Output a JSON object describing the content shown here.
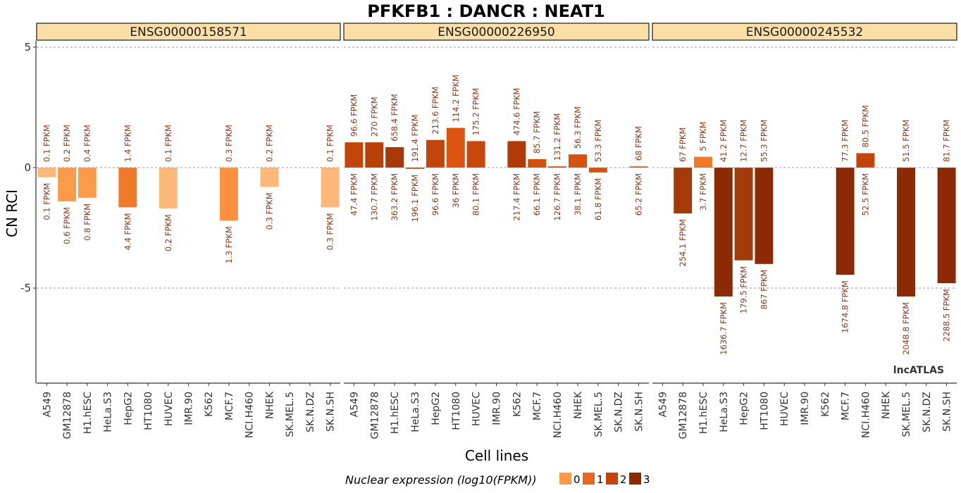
{
  "chart_data": {
    "type": "bar",
    "title": "PFKFB1 : DANCR : NEAT1",
    "xlabel": "Cell lines",
    "ylabel": "CN RCI",
    "ylim": [
      -9,
      6
    ],
    "yticks": [
      5,
      0,
      -5
    ],
    "grid": "horizontal dashed at y ticks",
    "categories": [
      "A549",
      "GM12878",
      "H1.hESC",
      "HeLa.S3",
      "HepG2",
      "HT1080",
      "HUVEC",
      "IMR.90",
      "K562",
      "MCF.7",
      "NCI.H460",
      "NHEK",
      "SK.MEL.5",
      "SK.N.DZ",
      "SK.N.SH"
    ],
    "legend": {
      "title": "Nuclear expression (log10(FPKM))",
      "position": "bottom",
      "items": [
        {
          "label": "0",
          "color": "#FC9A4A"
        },
        {
          "label": "1",
          "color": "#E8661F"
        },
        {
          "label": "2",
          "color": "#C2450B"
        },
        {
          "label": "3",
          "color": "#8B2A05"
        }
      ]
    },
    "watermark": "lncATLAS",
    "panels": [
      {
        "name": "ENSG00000158571",
        "bars": [
          {
            "category": "A549",
            "value": -0.4,
            "color": "#FDB87A",
            "top_label": "0.1 FPKM",
            "bottom_label": "0.1 FPKM"
          },
          {
            "category": "GM12878",
            "value": -1.4,
            "color": "#FC9A4A",
            "top_label": "0.2 FPKM",
            "bottom_label": "0.6 FPKM"
          },
          {
            "category": "H1.hESC",
            "value": -1.25,
            "color": "#FC9A4A",
            "top_label": "0.4 FPKM",
            "bottom_label": "0.8 FPKM"
          },
          {
            "category": "HepG2",
            "value": -1.65,
            "color": "#F07A2A",
            "top_label": "1.4 FPKM",
            "bottom_label": "4.4 FPKM"
          },
          {
            "category": "HUVEC",
            "value": -1.7,
            "color": "#FDB87A",
            "top_label": "0.1 FPKM",
            "bottom_label": "0.2 FPKM"
          },
          {
            "category": "MCF.7",
            "value": -2.2,
            "color": "#FC9040",
            "top_label": "0.3 FPKM",
            "bottom_label": "1.3 FPKM"
          },
          {
            "category": "NHEK",
            "value": -0.8,
            "color": "#FDB87A",
            "top_label": "0.2 FPKM",
            "bottom_label": "0.3 FPKM"
          },
          {
            "category": "SK.N.SH",
            "value": -1.65,
            "color": "#FDB87A",
            "top_label": "0.1 FPKM",
            "bottom_label": "0.3 FPKM"
          }
        ]
      },
      {
        "name": "ENSG00000226950",
        "bars": [
          {
            "category": "A549",
            "value": 1.05,
            "color": "#C2450B",
            "top_label": "96.6 FPKM",
            "bottom_label": "47.4 FPKM"
          },
          {
            "category": "GM12878",
            "value": 1.05,
            "color": "#B8400A",
            "top_label": "270 FPKM",
            "bottom_label": "130.7 FPKM"
          },
          {
            "category": "H1.hESC",
            "value": 0.85,
            "color": "#A83808",
            "top_label": "658.4 FPKM",
            "bottom_label": "363.2 FPKM"
          },
          {
            "category": "HeLa.S3",
            "value": -0.05,
            "color": "#B8400A",
            "top_label": "191.4 FPKM",
            "bottom_label": "196.1 FPKM"
          },
          {
            "category": "HepG2",
            "value": 1.15,
            "color": "#C2450B",
            "top_label": "213.6 FPKM",
            "bottom_label": "96.6 FPKM"
          },
          {
            "category": "HT1080",
            "value": 1.65,
            "color": "#DC540F",
            "top_label": "114.2 FPKM",
            "bottom_label": "36 FPKM"
          },
          {
            "category": "HUVEC",
            "value": 1.1,
            "color": "#C8480C",
            "top_label": "175.2 FPKM",
            "bottom_label": "80.1 FPKM"
          },
          {
            "category": "K562",
            "value": 1.1,
            "color": "#B03A08",
            "top_label": "474.6 FPKM",
            "bottom_label": "217.4 FPKM"
          },
          {
            "category": "MCF.7",
            "value": 0.35,
            "color": "#D0500E",
            "top_label": "85.7 FPKM",
            "bottom_label": "66.1 FPKM"
          },
          {
            "category": "NCI.H460",
            "value": 0.05,
            "color": "#C2450B",
            "top_label": "131.2 FPKM",
            "bottom_label": "126.7 FPKM"
          },
          {
            "category": "NHEK",
            "value": 0.55,
            "color": "#D65210",
            "top_label": "56.3 FPKM",
            "bottom_label": "38.1 FPKM"
          },
          {
            "category": "SK.MEL.5",
            "value": -0.2,
            "color": "#D65210",
            "top_label": "53.3 FPKM",
            "bottom_label": "61.8 FPKM"
          },
          {
            "category": "SK.N.SH",
            "value": 0.05,
            "color": "#D65210",
            "top_label": "68 FPKM",
            "bottom_label": "65.2 FPKM"
          }
        ]
      },
      {
        "name": "ENSG00000245532",
        "bars": [
          {
            "category": "GM12878",
            "value": -1.9,
            "color": "#A33A0A",
            "top_label": "67 FPKM",
            "bottom_label": "254.1 FPKM"
          },
          {
            "category": "H1.hESC",
            "value": 0.45,
            "color": "#F07A2A",
            "top_label": "5 FPKM",
            "bottom_label": "3.7 FPKM"
          },
          {
            "category": "HeLa.S3",
            "value": -5.35,
            "color": "#8B2A05",
            "top_label": "41.2 FPKM",
            "bottom_label": "1636.7 FPKM"
          },
          {
            "category": "HepG2",
            "value": -3.85,
            "color": "#A33A0A",
            "top_label": "12.7 FPKM",
            "bottom_label": "179.5 FPKM"
          },
          {
            "category": "HT1080",
            "value": -4.0,
            "color": "#8B2A05",
            "top_label": "55.3 FPKM",
            "bottom_label": "867 FPKM"
          },
          {
            "category": "MCF.7",
            "value": -4.45,
            "color": "#8B2A05",
            "top_label": "77.3 FPKM",
            "bottom_label": "1674.8 FPKM"
          },
          {
            "category": "NCI.H460",
            "value": 0.6,
            "color": "#C2450B",
            "top_label": "80.5 FPKM",
            "bottom_label": "52.5 FPKM"
          },
          {
            "category": "SK.MEL.5",
            "value": -5.35,
            "color": "#8B2A05",
            "top_label": "51.5 FPKM",
            "bottom_label": "2048.8 FPKM"
          },
          {
            "category": "SK.N.SH",
            "value": -4.8,
            "color": "#8B2A05",
            "top_label": "81.7 FPKM",
            "bottom_label": "2288.5 FPKM"
          }
        ]
      }
    ]
  }
}
